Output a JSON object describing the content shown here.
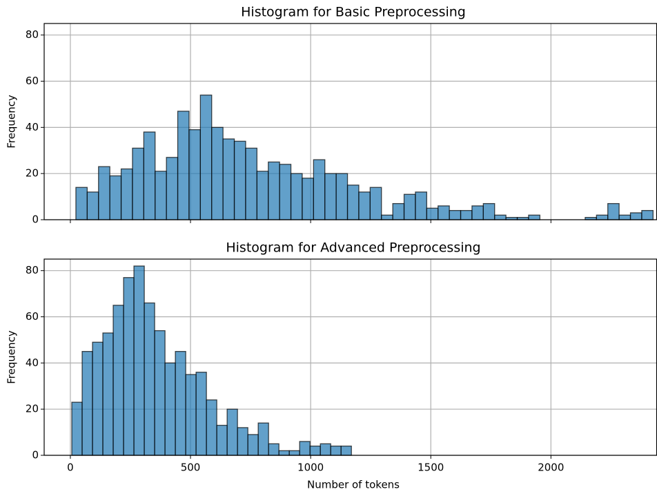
{
  "chart_data": [
    {
      "type": "histogram",
      "title": "Histogram for Basic Preprocessing",
      "ylabel": "Frequency",
      "bins": [
        23,
        70.1,
        117.2,
        164.3,
        211.4,
        258.5,
        305.6,
        352.7,
        399.8,
        446.9,
        494,
        541.1,
        588.2,
        635.3,
        682.4,
        729.5,
        776.6,
        823.7,
        870.8,
        917.9,
        965,
        1012.1,
        1059.2,
        1106.3,
        1153.4,
        1200.5,
        1247.6,
        1294.7,
        1341.8,
        1388.9,
        1436,
        1483.1,
        1530.2,
        1577.3,
        1624.4,
        1671.5,
        1718.6,
        1765.7,
        1812.8,
        1859.9,
        1907,
        1954.1,
        2001.2,
        2048.3,
        2095.4,
        2142.5,
        2189.6,
        2236.7,
        2283.8,
        2330.9,
        2378,
        2425.1
      ],
      "values": [
        14,
        12,
        23,
        19,
        22,
        31,
        38,
        21,
        27,
        47,
        39,
        54,
        40,
        35,
        34,
        31,
        21,
        25,
        24,
        20,
        18,
        26,
        20,
        20,
        15,
        12,
        14,
        2,
        7,
        11,
        12,
        5,
        6,
        4,
        4,
        6,
        7,
        2,
        1,
        1,
        2,
        0,
        0,
        0,
        0,
        1,
        2,
        7,
        2,
        3,
        4
      ],
      "color": "#1f77b4",
      "xlim": [
        -109,
        2440
      ],
      "ylim": [
        0,
        85
      ],
      "yticks": [
        0,
        20,
        40,
        60,
        80
      ],
      "grid": true
    },
    {
      "type": "histogram",
      "title": "Histogram for Advanced Preprocessing",
      "ylabel": "Frequency",
      "xlabel": "Number of tokens",
      "bins": [
        6,
        49.1,
        92.2,
        135.3,
        178.4,
        221.5,
        264.6,
        307.7,
        350.8,
        393.9,
        437,
        480.1,
        523.2,
        566.3,
        609.4,
        652.5,
        695.6,
        738.7,
        781.8,
        824.9,
        868,
        911.1,
        954.2,
        997.3,
        1040.4,
        1083.5,
        1126.6,
        1169.7
      ],
      "values": [
        23,
        45,
        49,
        53,
        65,
        77,
        82,
        66,
        54,
        40,
        45,
        35,
        36,
        24,
        13,
        20,
        12,
        9,
        14,
        5,
        2,
        2,
        6,
        4,
        5,
        4,
        4
      ],
      "color": "#1f77b4",
      "xlim": [
        -109,
        2440
      ],
      "ylim": [
        0,
        85
      ],
      "yticks": [
        0,
        20,
        40,
        60,
        80
      ],
      "xticks": [
        0,
        500,
        1000,
        1500,
        2000
      ],
      "grid": true
    }
  ]
}
